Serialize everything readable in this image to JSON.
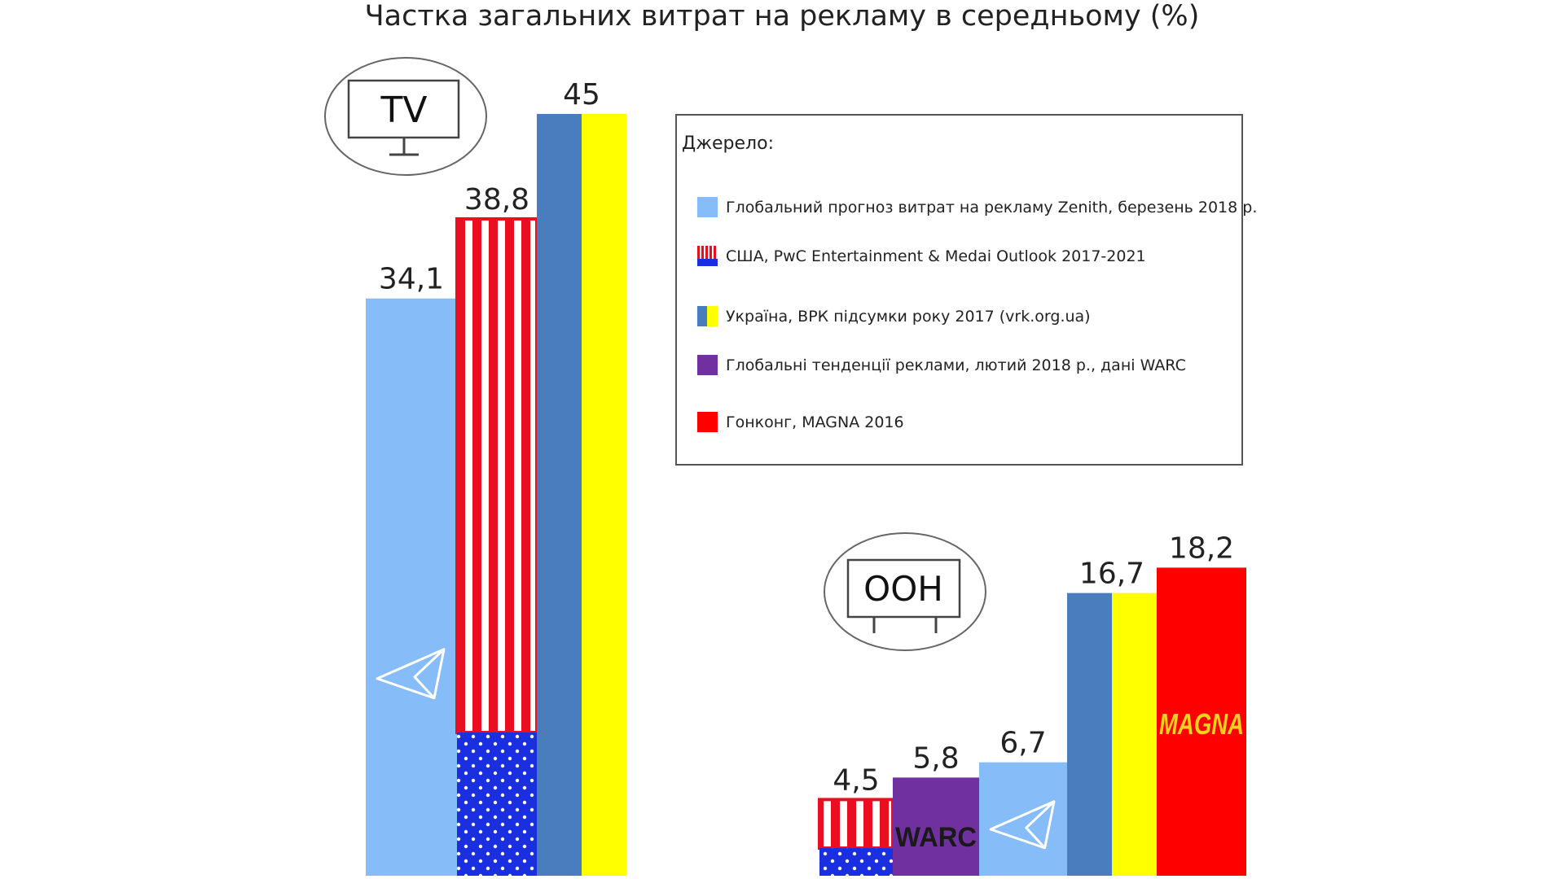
{
  "chart_data": [
    {
      "type": "bar",
      "title": "Частка загальних витрат на рекламу в середньому (%)",
      "group_label": "TV",
      "series": [
        {
          "name": "Глобальний прогноз витрат на рекламу Zenith, березень 2018 р.",
          "key": "zenith",
          "value": 34.1,
          "label": "34,1"
        },
        {
          "name": "США, PwC Entertainment & Medai Outlook 2017-2021",
          "key": "usa",
          "value": 38.8,
          "label": "38,8"
        },
        {
          "name": "Україна, ВРК підсумки року 2017 (vrk.org.ua)",
          "key": "ukraine",
          "value": 45,
          "label": "45"
        }
      ]
    },
    {
      "type": "bar",
      "group_label": "OOH",
      "series": [
        {
          "name": "США, PwC Entertainment & Medai Outlook 2017-2021",
          "key": "usa",
          "value": 4.5,
          "label": "4,5"
        },
        {
          "name": "Глобальні тенденції реклами, лютий 2018 р., дані WARC",
          "key": "warc",
          "value": 5.8,
          "label": "5,8",
          "logo": "WARC"
        },
        {
          "name": "Глобальний прогноз витрат на рекламу Zenith, березень 2018 р.",
          "key": "zenith",
          "value": 6.7,
          "label": "6,7"
        },
        {
          "name": "Україна, ВРК підсумки року 2017 (vrk.org.ua)",
          "key": "ukraine",
          "value": 16.7,
          "label": "16,7"
        },
        {
          "name": "Гонконг, MAGNA 2016",
          "key": "magna",
          "value": 18.2,
          "label": "18,2",
          "logo": "MAGNA"
        }
      ]
    }
  ],
  "legend": {
    "heading": "Джерело:",
    "items": [
      {
        "key": "zenith",
        "label": "Глобальний прогноз витрат на рекламу Zenith, березень 2018 р."
      },
      {
        "key": "usa",
        "label": "США, PwC Entertainment & Medai Outlook 2017-2021"
      },
      {
        "key": "ukraine",
        "label": "Україна, ВРК підсумки року 2017 (vrk.org.ua)"
      },
      {
        "key": "warc",
        "label": "Глобальні тенденції реклами, лютий 2018 р., дані WARC"
      },
      {
        "key": "magna",
        "label": "Гонконг, MAGNA 2016"
      }
    ]
  },
  "colors": {
    "zenith": "#86bcf8",
    "usa_red": "#e81020",
    "usa_blue": "#1a2fe0",
    "ukraine_blue": "#4a7dbd",
    "ukraine_yellow": "#ffff00",
    "warc": "#7030a0",
    "magna": "#ff0000",
    "magna_logo": "#f2d21e"
  },
  "icons": {
    "tv": "tv-icon",
    "ooh": "billboard-icon",
    "zenith": "paper-plane-icon"
  }
}
